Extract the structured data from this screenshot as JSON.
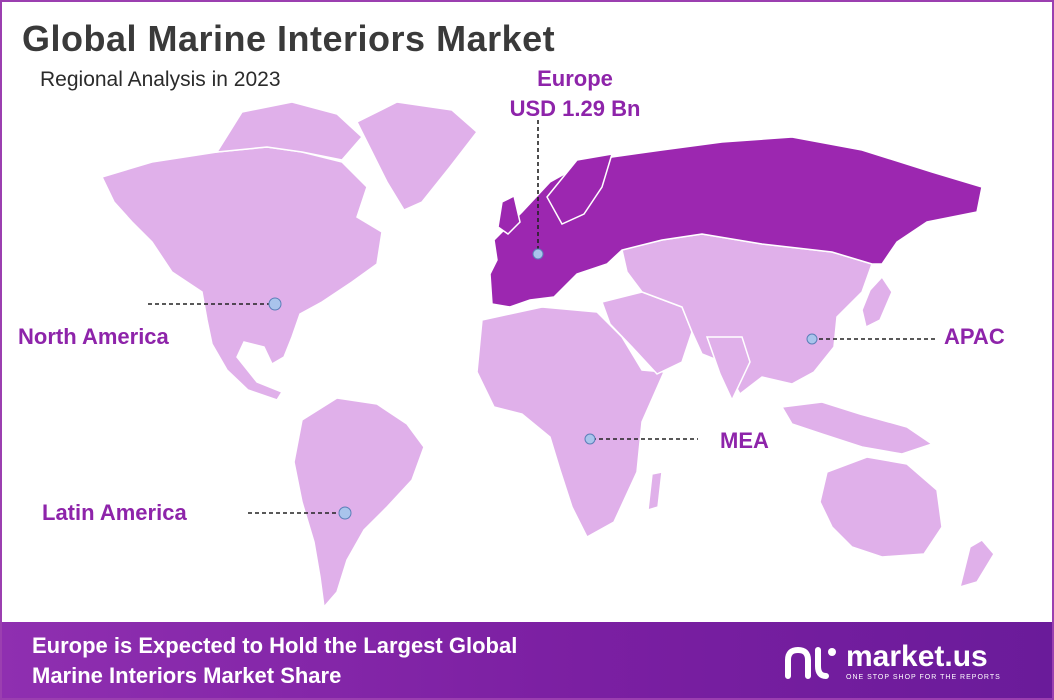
{
  "header": {
    "title": "Global Marine Interiors Market",
    "subtitle": "Regional Analysis in 2023"
  },
  "regions": {
    "europe": {
      "name": "Europe",
      "value": "USD 1.29 Bn"
    },
    "north_america": {
      "name": "North America"
    },
    "latin_america": {
      "name": "Latin America"
    },
    "mea": {
      "name": "MEA"
    },
    "apac": {
      "name": "APAC"
    }
  },
  "footer": {
    "line1": "Europe is Expected to Hold the Largest Global",
    "line2": "Marine Interiors Market Share",
    "brand_name": "market.us",
    "brand_tagline": "ONE STOP SHOP FOR THE REPORTS"
  },
  "colors": {
    "land": "#e0b0ea",
    "highlight": "#9c27b0",
    "accent": "#8e24aa",
    "marker": "#a9c4ec"
  }
}
